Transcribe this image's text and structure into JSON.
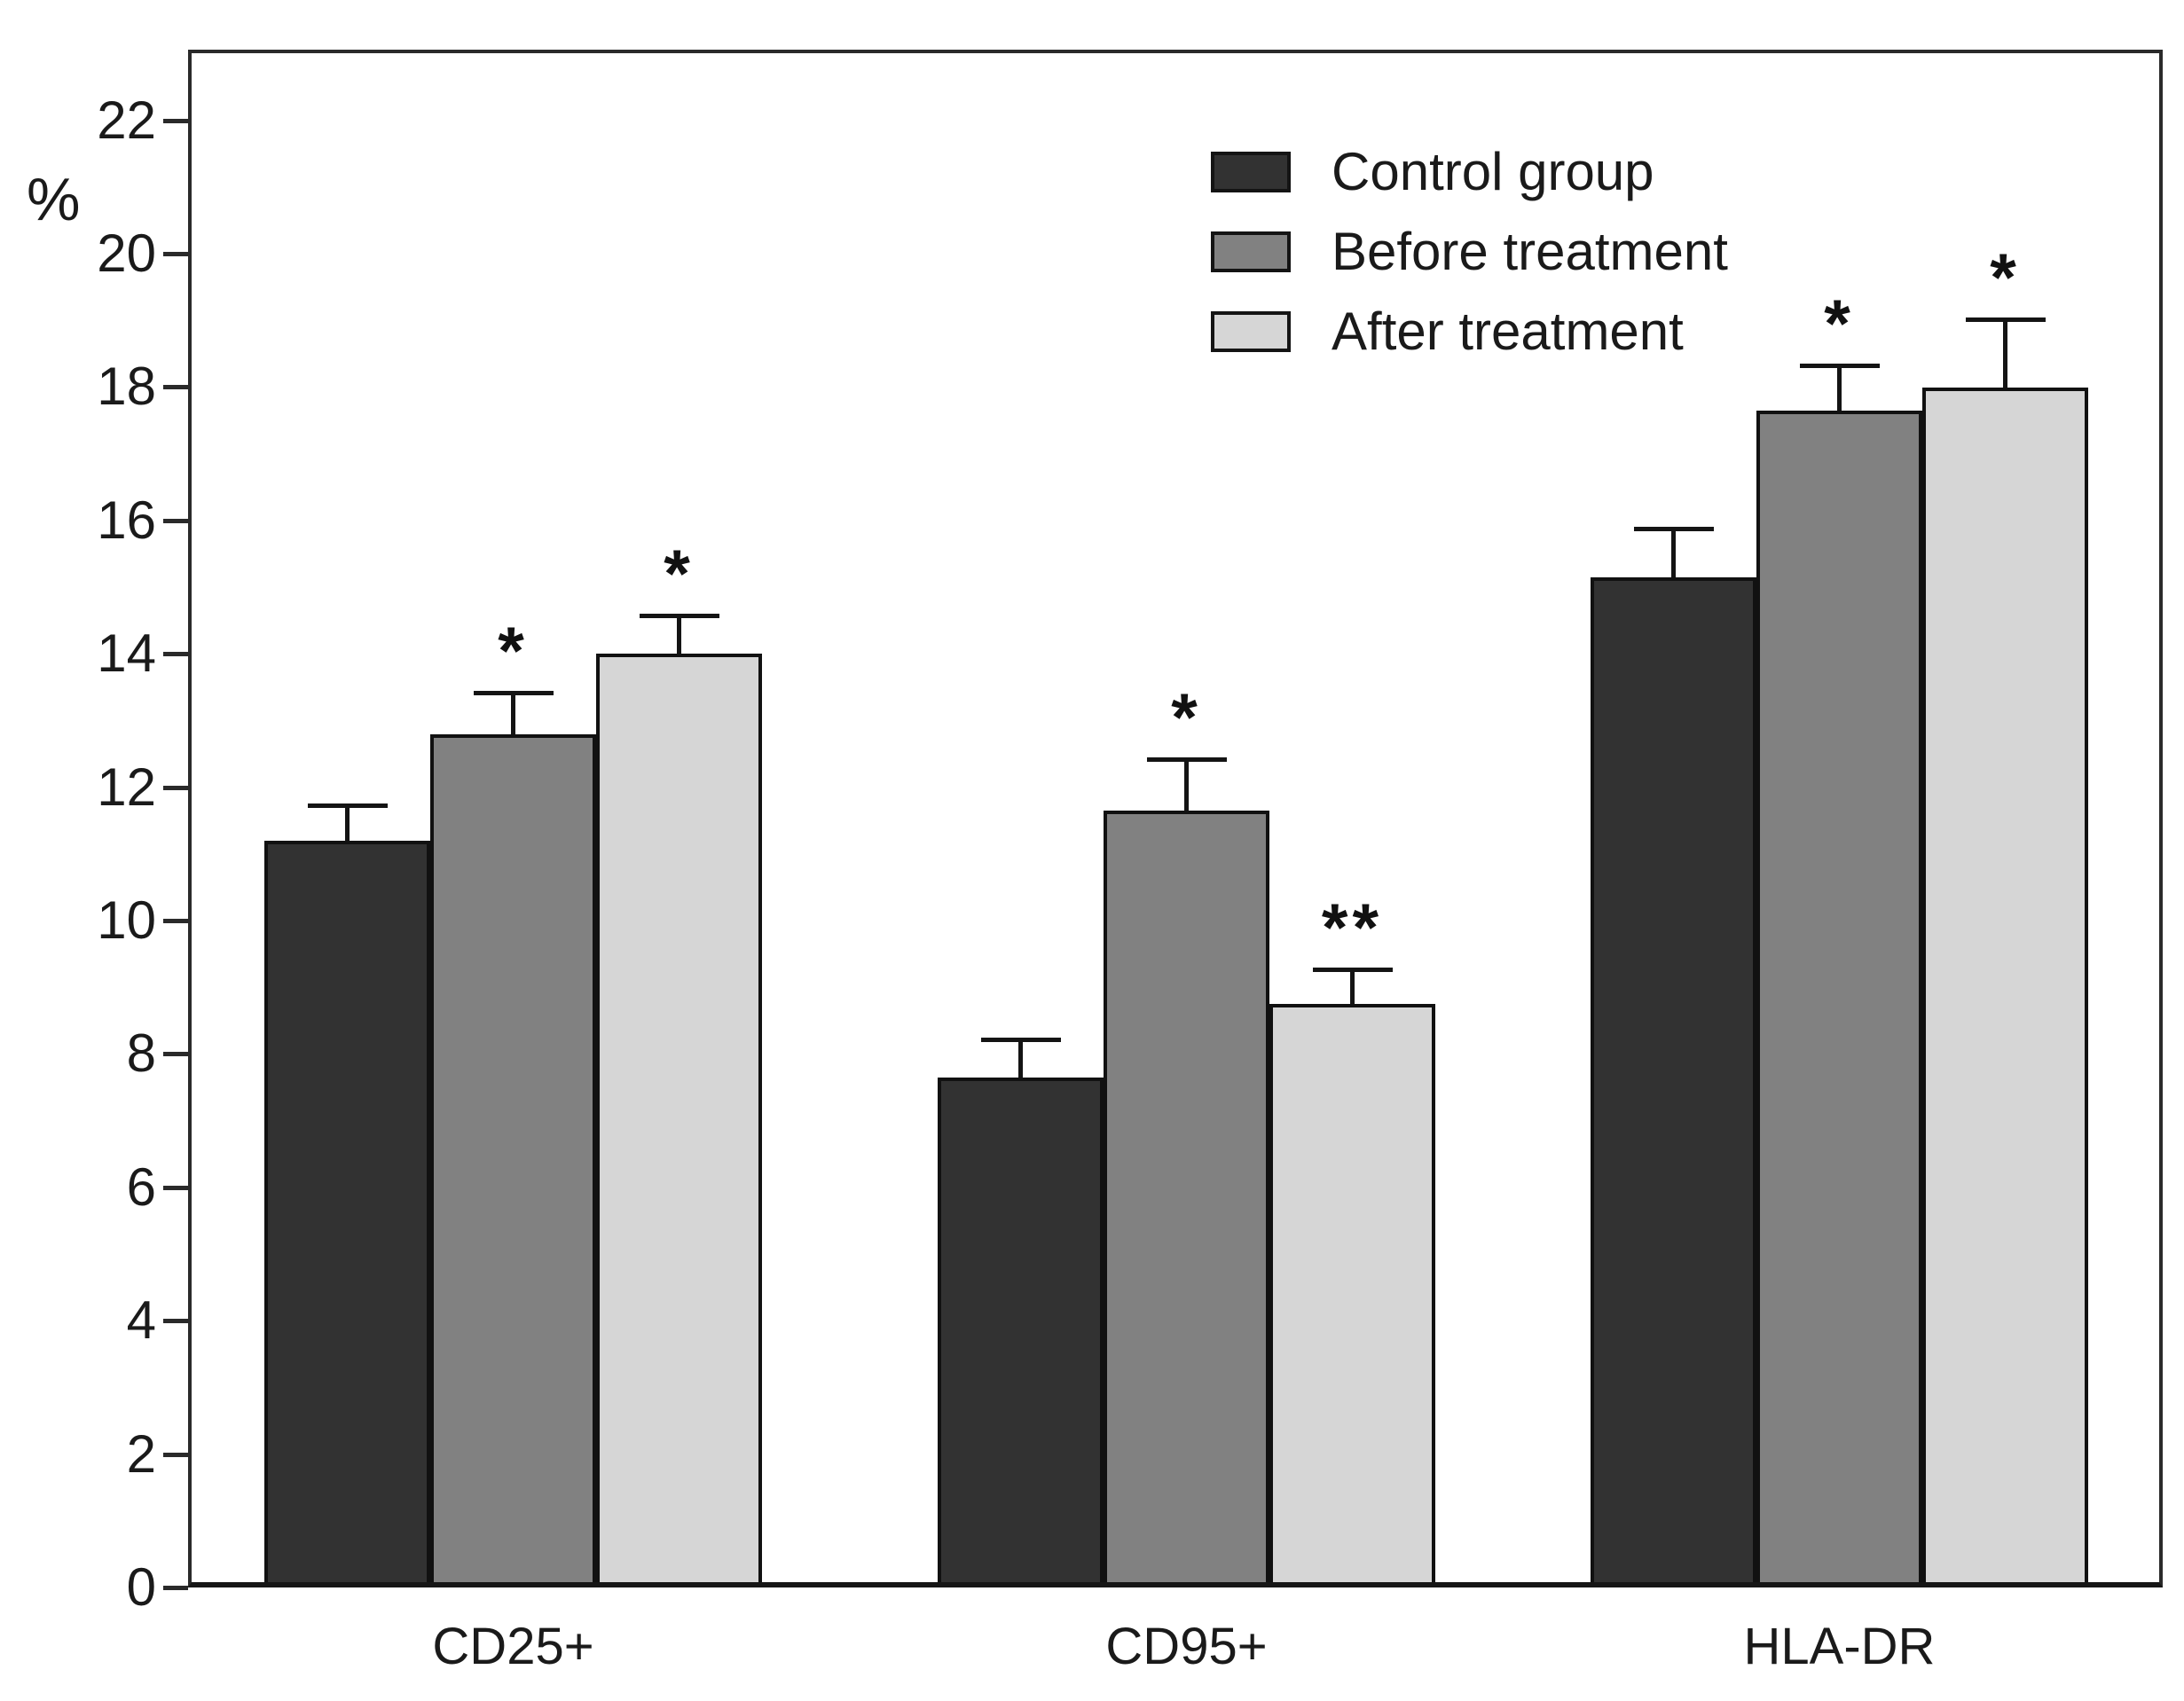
{
  "chart_data": {
    "type": "bar",
    "title": "",
    "ylabel": "%",
    "xlabel": "",
    "ylim": [
      0,
      23
    ],
    "yticks": [
      0,
      2,
      4,
      6,
      8,
      10,
      12,
      14,
      16,
      18,
      20,
      22
    ],
    "grid": false,
    "legend_position": "top-center",
    "categories": [
      "CD25+",
      "CD95+",
      "HLA-DR"
    ],
    "series": [
      {
        "name": "Control group",
        "color": "#323232",
        "values": [
          11.2,
          7.65,
          15.15
        ],
        "errors": [
          0.55,
          0.6,
          0.75
        ],
        "significance": [
          "",
          "",
          ""
        ]
      },
      {
        "name": "Before treatment",
        "color": "#818181",
        "values": [
          12.8,
          11.65,
          17.65
        ],
        "errors": [
          0.65,
          0.8,
          0.7
        ],
        "significance": [
          "*",
          "*",
          "*"
        ]
      },
      {
        "name": "After treatment",
        "color": "#d6d6d6",
        "values": [
          14.0,
          8.75,
          18.0
        ],
        "errors": [
          0.6,
          0.55,
          1.05
        ],
        "significance": [
          "*",
          "**",
          "*"
        ]
      }
    ]
  }
}
